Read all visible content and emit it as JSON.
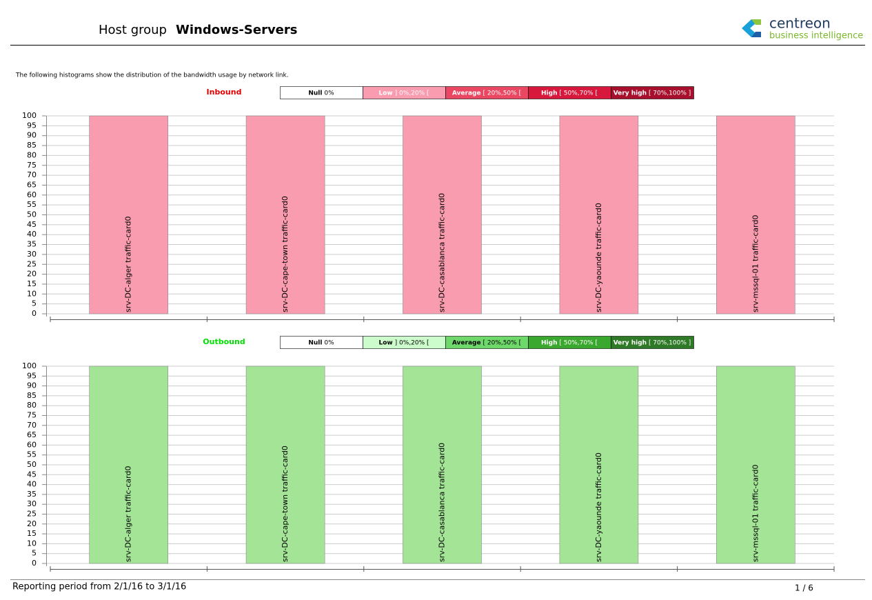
{
  "header": {
    "prefix": "Host group",
    "name": "Windows-Servers",
    "logo_name": "centreon",
    "logo_sub": "business intelligence"
  },
  "intro": "The following histograms show the distribution of the bandwidth usage by network link.",
  "chart_data": [
    {
      "type": "bar",
      "title": "Inbound",
      "title_color": "#e00000",
      "legend": [
        {
          "name": "Null",
          "range": "0%",
          "color": "#ffffff",
          "text_color": "#000000"
        },
        {
          "name": "Low",
          "range": "] 0%,20% [",
          "color": "#f99caf",
          "text_color": "#ffffff"
        },
        {
          "name": "Average",
          "range": "[ 20%,50% [",
          "color": "#ea4762",
          "text_color": "#ffffff"
        },
        {
          "name": "High",
          "range": "[ 50%,70% [",
          "color": "#d8173c",
          "text_color": "#ffffff"
        },
        {
          "name": "Very high",
          "range": "[ 70%,100% ]",
          "color": "#a80f2c",
          "text_color": "#ffffff"
        }
      ],
      "categories": [
        "srv-DC-alger traffic-card0",
        "srv-DC-cape-town traffic-card0",
        "srv-DC-casablanca traffic-card0",
        "srv-DC-yaounde traffic-card0",
        "srv-mssql-01 traffic-card0"
      ],
      "values": [
        100,
        100,
        100,
        100,
        100
      ],
      "color": "#f99caf",
      "ylim": [
        0,
        100
      ],
      "yticks": [
        0,
        5,
        10,
        15,
        20,
        25,
        30,
        35,
        40,
        45,
        50,
        55,
        60,
        65,
        70,
        75,
        80,
        85,
        90,
        95,
        100
      ],
      "grid": true
    },
    {
      "type": "bar",
      "title": "Outbound",
      "title_color": "#00e000",
      "legend": [
        {
          "name": "Null",
          "range": "0%",
          "color": "#ffffff",
          "text_color": "#000000"
        },
        {
          "name": "Low",
          "range": "] 0%,20% [",
          "color": "#ccfccc",
          "text_color": "#000000"
        },
        {
          "name": "Average",
          "range": "[ 20%,50% [",
          "color": "#6fd86a",
          "text_color": "#000000"
        },
        {
          "name": "High",
          "range": "[ 50%,70% [",
          "color": "#3aa82e",
          "text_color": "#ffffff"
        },
        {
          "name": "Very high",
          "range": "[ 70%,100% ]",
          "color": "#2e7a26",
          "text_color": "#ffffff"
        }
      ],
      "categories": [
        "srv-DC-alger traffic-card0",
        "srv-DC-cape-town traffic-card0",
        "srv-DC-casablanca traffic-card0",
        "srv-DC-yaounde traffic-card0",
        "srv-mssql-01 traffic-card0"
      ],
      "values": [
        100,
        100,
        100,
        100,
        100
      ],
      "color": "#a3e496",
      "ylim": [
        0,
        100
      ],
      "yticks": [
        0,
        5,
        10,
        15,
        20,
        25,
        30,
        35,
        40,
        45,
        50,
        55,
        60,
        65,
        70,
        75,
        80,
        85,
        90,
        95,
        100
      ],
      "grid": true
    }
  ],
  "footer": {
    "period": "Reporting period from 2/1/16 to 3/1/16",
    "page": "1 / 6"
  }
}
